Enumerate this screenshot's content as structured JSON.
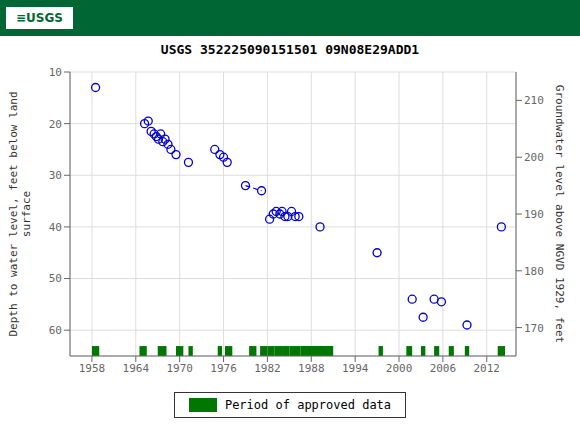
{
  "chart_data": {
    "type": "scatter",
    "title": "USGS 352225090151501 09N08E29ADD1",
    "annotations": [
      "≡USGS"
    ],
    "ylabel": "Depth to water level, feet below land\nsurface",
    "y2label": "Groundwater level above NGVD 1929, feet",
    "xlim": [
      1955,
      2016
    ],
    "xticks": [
      1958,
      1964,
      1970,
      1976,
      1982,
      1988,
      1994,
      2000,
      2006,
      2012
    ],
    "ylim": [
      65,
      10
    ],
    "yticks": [
      10,
      20,
      30,
      40,
      50,
      60
    ],
    "y2lim": [
      165,
      215
    ],
    "y2ticks": [
      170,
      180,
      190,
      200,
      210
    ],
    "grid": true,
    "legend": "bottom",
    "series": [
      {
        "type": "scatter",
        "marker": "open_circle",
        "color": "#0000cc",
        "x": [
          1958.5,
          1965.2,
          1965.7,
          1966.1,
          1966.5,
          1966.8,
          1967.1,
          1967.4,
          1967.7,
          1968.0,
          1968.4,
          1968.8,
          1969.5,
          1971.2,
          1974.8,
          1975.5,
          1976.0,
          1976.5,
          1979.0,
          1981.2,
          1982.3,
          1982.8,
          1983.2,
          1983.7,
          1984.0,
          1984.4,
          1984.8,
          1985.3,
          1985.8,
          1986.3,
          1989.2,
          1997.0,
          2001.8,
          2003.3,
          2004.8,
          2005.8,
          2009.3,
          2014.0
        ],
        "values": [
          13,
          20.0,
          19.5,
          21.5,
          22.0,
          22.5,
          23.0,
          22.0,
          23.5,
          23.0,
          24.0,
          25.0,
          26.0,
          27.5,
          25.0,
          26.0,
          26.5,
          27.5,
          32.0,
          33.0,
          38.5,
          37.5,
          37.0,
          37.5,
          37.0,
          38.0,
          38.0,
          37.0,
          38.0,
          38.0,
          40.0,
          45.0,
          54.0,
          57.5,
          54.0,
          54.5,
          59.0,
          40.0
        ]
      },
      {
        "type": "line",
        "line_style": "dashed",
        "color": "#0000cc",
        "x": [
          1979.0,
          1981.2
        ],
        "values": [
          32.0,
          33.0
        ]
      },
      {
        "type": "periods",
        "name": "Period of approved data",
        "color": "#007700",
        "periods": [
          [
            1958.0,
            1959.0
          ],
          [
            1964.5,
            1965.5
          ],
          [
            1967.0,
            1968.2
          ],
          [
            1969.5,
            1970.5
          ],
          [
            1971.2,
            1971.8
          ],
          [
            1975.2,
            1975.8
          ],
          [
            1976.2,
            1977.2
          ],
          [
            1979.5,
            1980.5
          ],
          [
            1981.0,
            1982.0
          ],
          [
            1982.0,
            1983.0
          ],
          [
            1983.0,
            1984.0
          ],
          [
            1984.0,
            1985.0
          ],
          [
            1985.0,
            1986.5
          ],
          [
            1986.5,
            1991.0
          ],
          [
            1997.2,
            1997.8
          ],
          [
            2001.0,
            2001.8
          ],
          [
            2003.0,
            2003.6
          ],
          [
            2004.8,
            2005.5
          ],
          [
            2006.8,
            2007.5
          ],
          [
            2009.0,
            2009.6
          ],
          [
            2013.5,
            2014.5
          ]
        ]
      }
    ]
  }
}
